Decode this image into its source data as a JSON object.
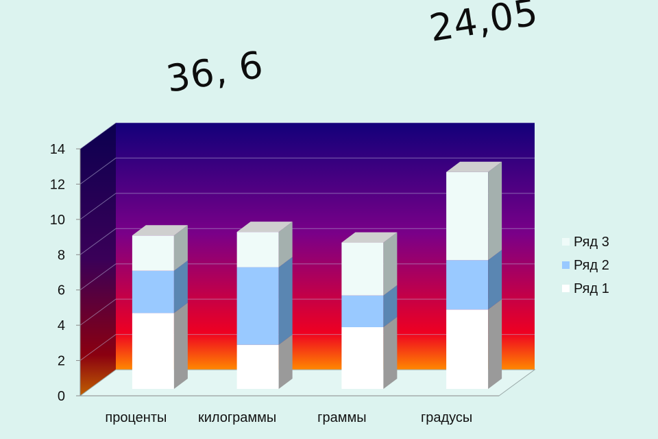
{
  "colors": {
    "background": "#dcf3ef",
    "series": [
      "#ffffff",
      "#99c9ff",
      "#effbf9"
    ],
    "series_side": [
      "#9a9a9a",
      "#5a86b2",
      "#a4b0ae"
    ],
    "series_top": [
      "#cfcfcf",
      "#c2c2c2",
      "#c6c6c6"
    ],
    "wall_top": "#13007a",
    "wall_mid": "#7a0088",
    "wall_low": "#ee0022",
    "wall_bottom": "#ff8800"
  },
  "annotations": [
    "36, 6",
    "24,05"
  ],
  "chart_data": {
    "type": "bar",
    "stacked": true,
    "three_d": true,
    "categories": [
      "проценты",
      "килограммы",
      "граммы",
      "градусы"
    ],
    "series": [
      {
        "name": "Ряд 1",
        "values": [
          4.3,
          2.5,
          3.5,
          4.5
        ]
      },
      {
        "name": "Ряд 2",
        "values": [
          2.4,
          4.4,
          1.8,
          2.8
        ]
      },
      {
        "name": "Ряд 3",
        "values": [
          2.0,
          2.0,
          3.0,
          5.0
        ]
      }
    ],
    "ylim": [
      0,
      14
    ],
    "yticks": [
      0,
      2,
      4,
      6,
      8,
      10,
      12,
      14
    ],
    "grid": true,
    "legend": "right"
  }
}
